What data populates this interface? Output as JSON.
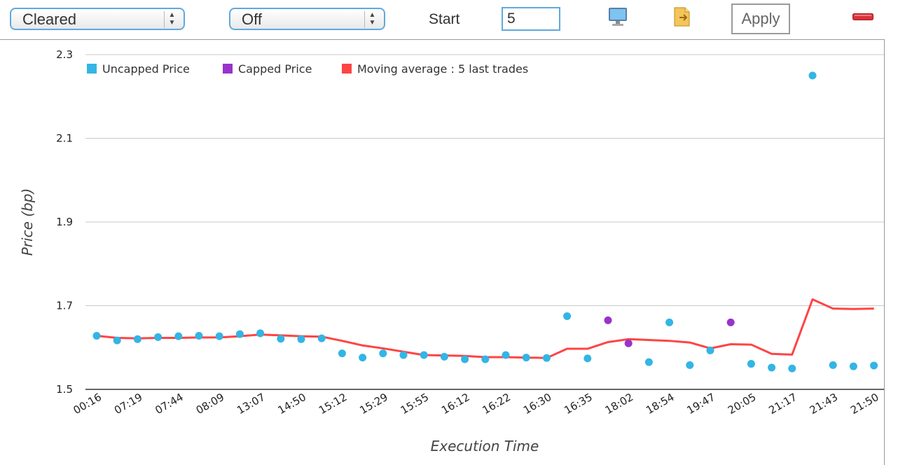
{
  "toolbar": {
    "status_select": {
      "value": "Cleared"
    },
    "cap_select": {
      "value": "Off"
    },
    "start_label": "Start",
    "start_value": "5",
    "apply_label": "Apply",
    "icons": [
      "monitor-icon",
      "export-icon",
      "remove-icon"
    ]
  },
  "colors": {
    "uncapped": "#33b5e5",
    "capped": "#9933cc",
    "moving_average": "#ff4444",
    "select_border": "#5fa9dd"
  },
  "chart_data": {
    "type": "scatter",
    "xlabel": "Execution Time",
    "ylabel": "Price (bp)",
    "ylim": [
      1.5,
      2.3
    ],
    "y_ticks": [
      "1.5",
      "1.7",
      "1.9",
      "2.1",
      "2.3"
    ],
    "x_tick_labels": [
      "00:16",
      "07:19",
      "07:44",
      "08:09",
      "13:07",
      "14:50",
      "15:12",
      "15:29",
      "15:55",
      "16:12",
      "16:22",
      "16:30",
      "16:35",
      "18:02",
      "18:54",
      "19:47",
      "20:05",
      "21:17",
      "21:43",
      "21:50"
    ],
    "grid": true,
    "legend_position": "top-left",
    "series": [
      {
        "name": "Uncapped Price",
        "marker": "point",
        "points": [
          [
            0,
            1.628
          ],
          [
            1,
            1.617
          ],
          [
            2,
            1.62
          ],
          [
            3,
            1.625
          ],
          [
            4,
            1.627
          ],
          [
            5,
            1.628
          ],
          [
            6,
            1.627
          ],
          [
            7,
            1.632
          ],
          [
            8,
            1.634
          ],
          [
            9,
            1.621
          ],
          [
            10,
            1.62
          ],
          [
            11,
            1.622
          ],
          [
            12,
            1.586
          ],
          [
            13,
            1.576
          ],
          [
            14,
            1.586
          ],
          [
            15,
            1.582
          ],
          [
            16,
            1.582
          ],
          [
            17,
            1.578
          ],
          [
            18,
            1.572
          ],
          [
            19,
            1.572
          ],
          [
            20,
            1.582
          ],
          [
            21,
            1.576
          ],
          [
            22,
            1.575
          ],
          [
            23,
            1.675
          ],
          [
            24,
            1.574
          ],
          [
            27,
            1.565
          ],
          [
            28,
            1.66
          ],
          [
            29,
            1.558
          ],
          [
            30,
            1.593
          ],
          [
            32,
            1.561
          ],
          [
            33,
            1.552
          ],
          [
            34,
            1.55
          ],
          [
            35,
            2.25
          ],
          [
            36,
            1.558
          ],
          [
            37,
            1.555
          ],
          [
            38,
            1.557
          ]
        ]
      },
      {
        "name": "Capped Price",
        "marker": "point",
        "points": [
          [
            25,
            1.665
          ],
          [
            26,
            1.61
          ],
          [
            31,
            1.66
          ]
        ]
      },
      {
        "name": "Moving average : 5 last trades",
        "marker": "line",
        "points": [
          [
            0,
            1.628
          ],
          [
            1,
            1.623
          ],
          [
            2,
            1.622
          ],
          [
            3,
            1.623
          ],
          [
            4,
            1.623
          ],
          [
            5,
            1.624
          ],
          [
            6,
            1.624
          ],
          [
            7,
            1.627
          ],
          [
            8,
            1.631
          ],
          [
            9,
            1.629
          ],
          [
            10,
            1.627
          ],
          [
            11,
            1.626
          ],
          [
            12,
            1.616
          ],
          [
            13,
            1.605
          ],
          [
            14,
            1.598
          ],
          [
            15,
            1.59
          ],
          [
            16,
            1.582
          ],
          [
            17,
            1.581
          ],
          [
            18,
            1.58
          ],
          [
            19,
            1.577
          ],
          [
            20,
            1.577
          ],
          [
            21,
            1.576
          ],
          [
            22,
            1.575
          ],
          [
            23,
            1.597
          ],
          [
            24,
            1.597
          ],
          [
            25,
            1.613
          ],
          [
            26,
            1.62
          ],
          [
            27,
            1.618
          ],
          [
            28,
            1.616
          ],
          [
            29,
            1.612
          ],
          [
            30,
            1.598
          ],
          [
            31,
            1.608
          ],
          [
            32,
            1.607
          ],
          [
            33,
            1.585
          ],
          [
            34,
            1.583
          ],
          [
            35,
            1.715
          ],
          [
            36,
            1.693
          ],
          [
            37,
            1.692
          ],
          [
            38,
            1.693
          ]
        ]
      }
    ]
  }
}
